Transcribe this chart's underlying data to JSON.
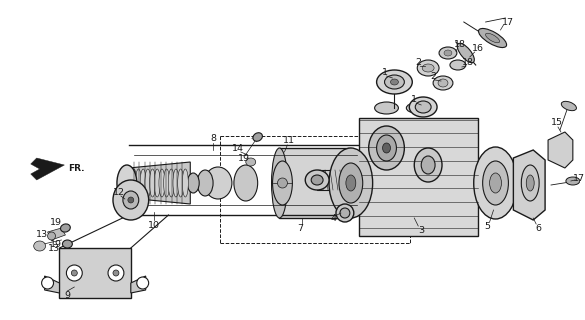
{
  "background_color": "#f5f5f0",
  "line_color": "#1a1a1a",
  "fig_width": 5.85,
  "fig_height": 3.2,
  "dpi": 100
}
